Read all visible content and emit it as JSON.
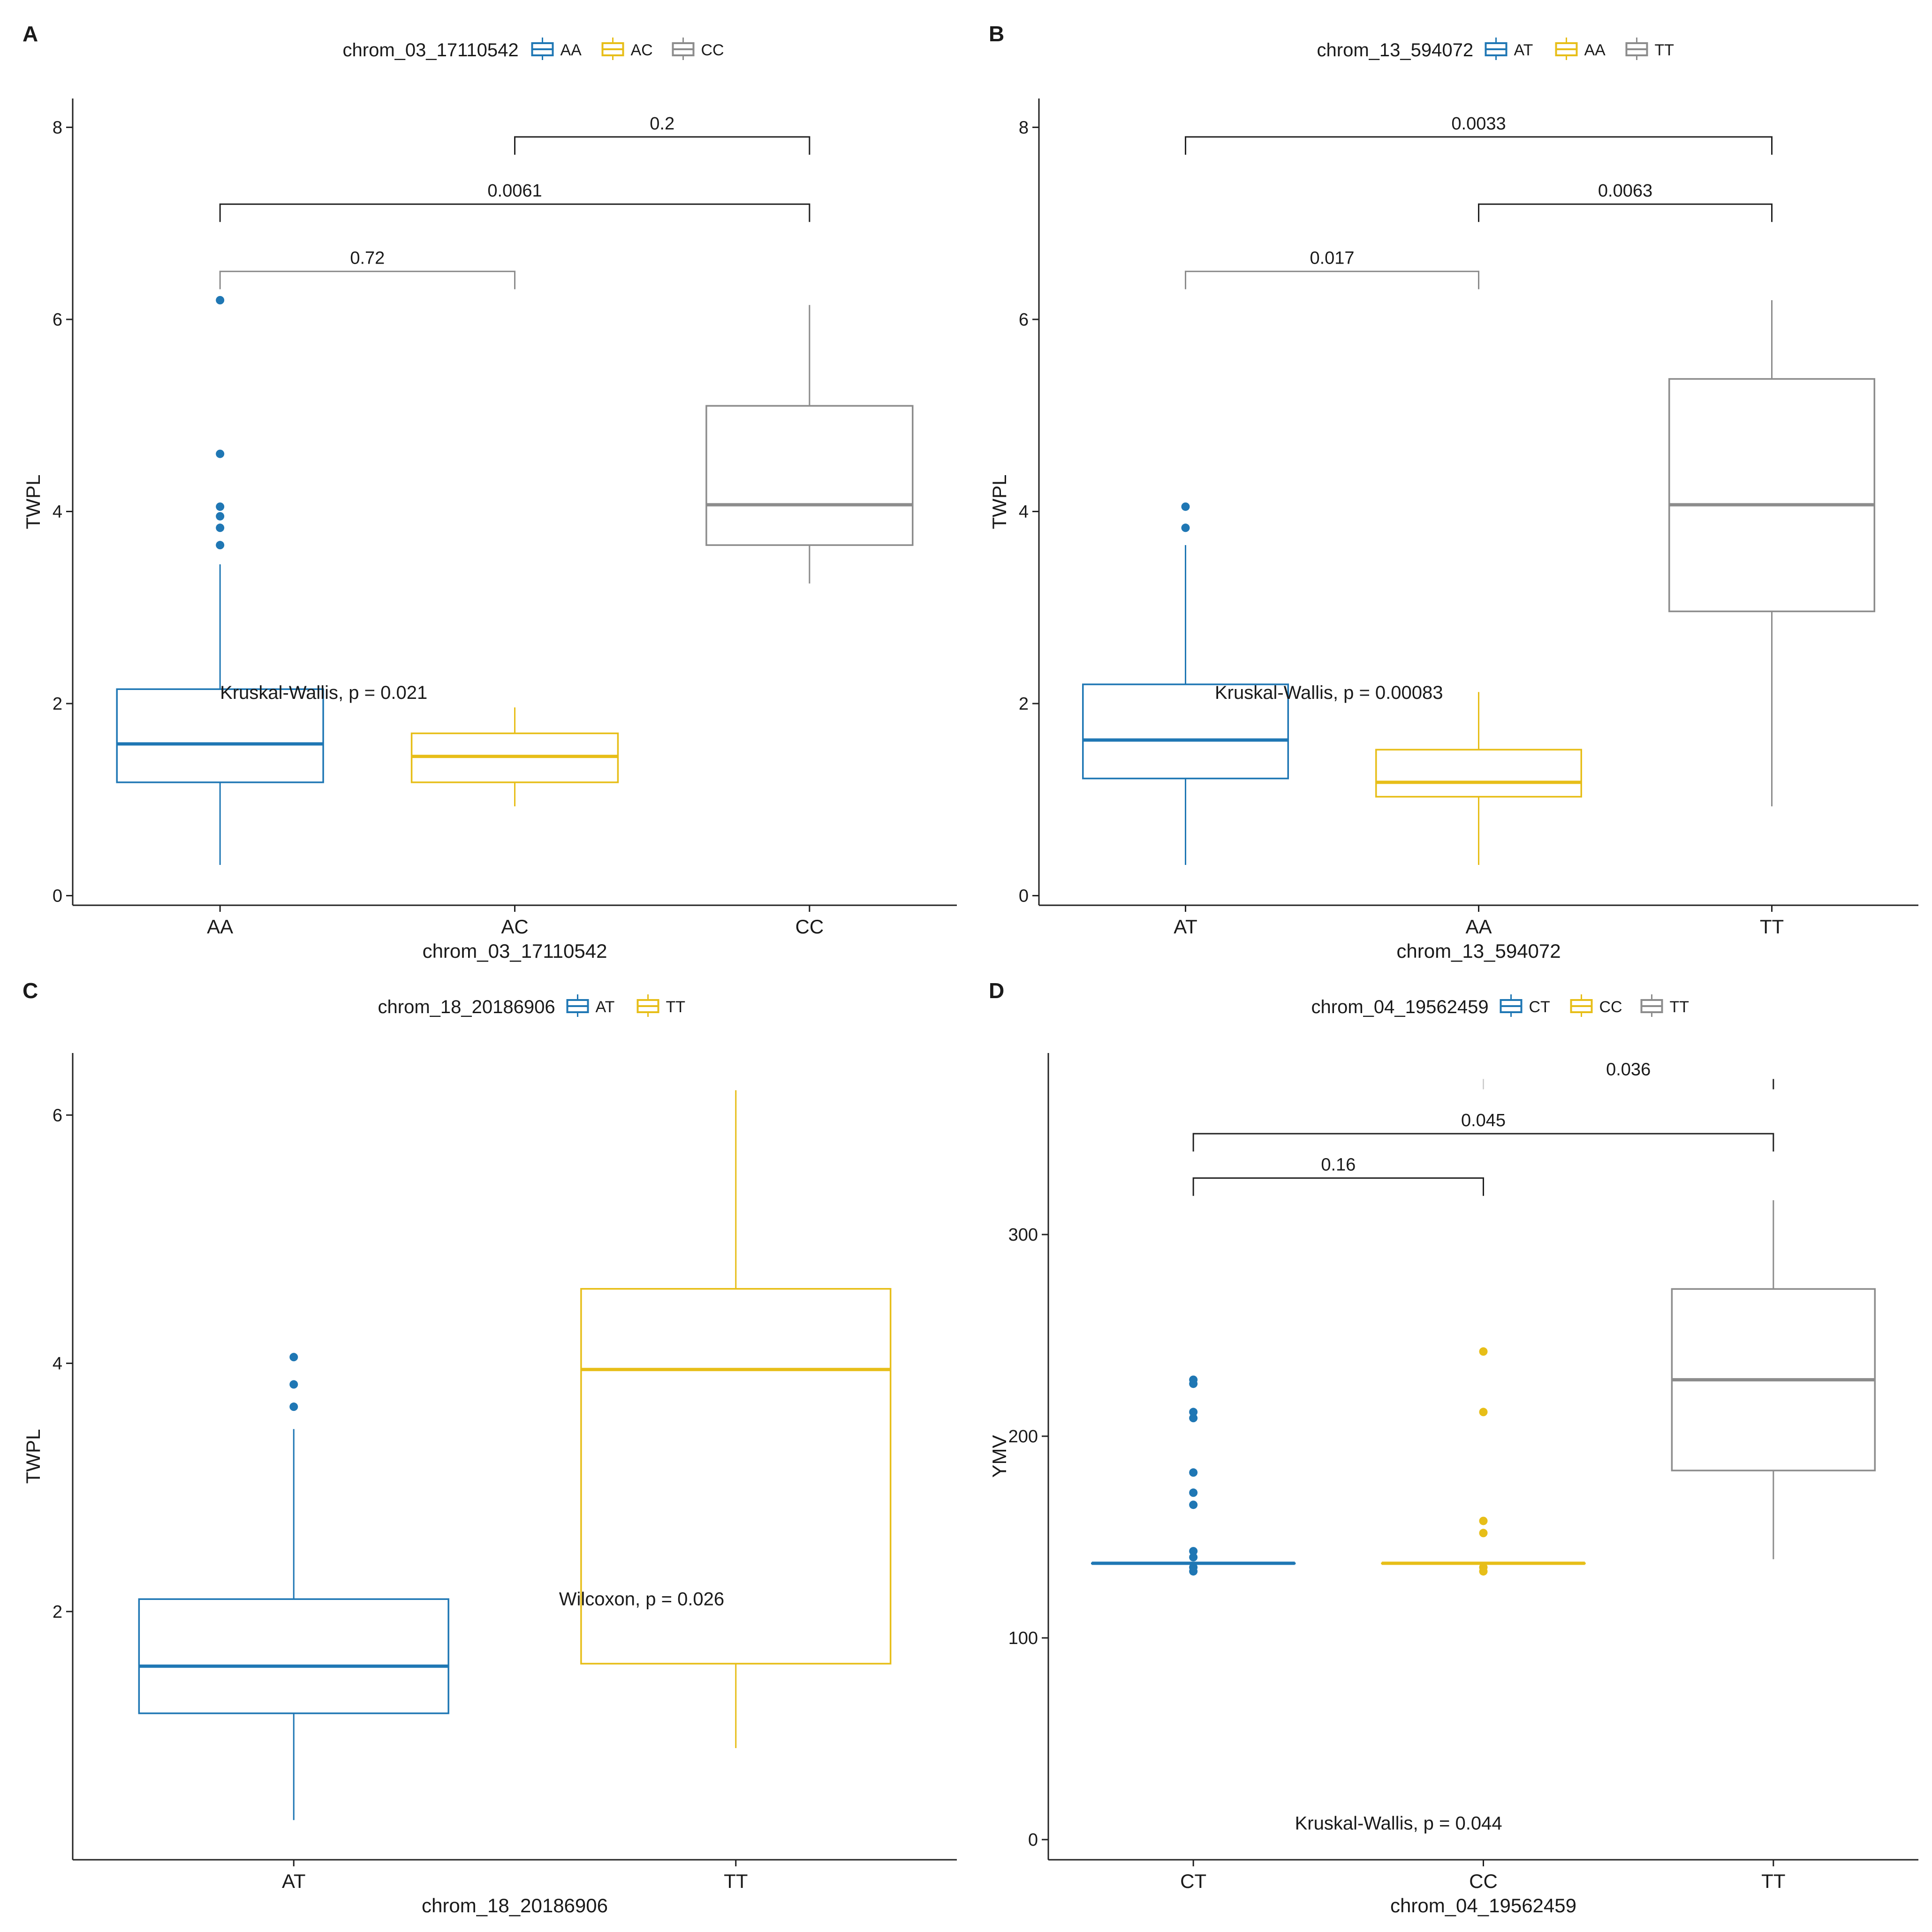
{
  "colors": {
    "group1": "#1F77B4",
    "group2": "#E7BE18",
    "group3": "#8C8C8C",
    "axis": "#222222",
    "bracket": "#222222"
  },
  "chart_data": [
    {
      "panel": "A",
      "type": "box",
      "legend_title": "chrom_03_17110542",
      "groups": [
        "AA",
        "AC",
        "CC"
      ],
      "xlabel": "chrom_03_17110542",
      "ylabel": "TWPL",
      "ylim": [
        -0.1,
        8.3
      ],
      "yticks": [
        0,
        2,
        4,
        6,
        8
      ],
      "tick_labels": [
        "0",
        "2",
        "4",
        "6",
        "8"
      ],
      "boxes": [
        {
          "group": "AA",
          "min": 0.32,
          "q1": 1.18,
          "median": 1.58,
          "q3": 2.15,
          "max": 3.45,
          "outliers": [
            3.65,
            3.83,
            3.95,
            4.05,
            4.6,
            6.2
          ]
        },
        {
          "group": "AC",
          "min": 0.93,
          "q1": 1.18,
          "median": 1.45,
          "q3": 1.69,
          "max": 1.96,
          "outliers": []
        },
        {
          "group": "CC",
          "min": 3.25,
          "q1": 3.65,
          "median": 4.07,
          "q3": 5.1,
          "max": 6.15,
          "outliers": []
        }
      ],
      "comparisons": [
        {
          "from": "AA",
          "to": "AC",
          "label": "0.72",
          "y": 6.5,
          "color": "#8C8C8C"
        },
        {
          "from": "AA",
          "to": "CC",
          "label": "0.0061",
          "y": 7.2,
          "color": "#222222"
        },
        {
          "from": "AC",
          "to": "CC",
          "label": "0.2",
          "y": 7.9,
          "color": "#222222"
        }
      ],
      "test_label": "Kruskal-Wallis, p = 0.021",
      "test_label_y": 2.05,
      "test_label_x": 0.5
    },
    {
      "panel": "B",
      "type": "box",
      "legend_title": "chrom_13_594072",
      "groups": [
        "AT",
        "AA",
        "TT"
      ],
      "xlabel": "chrom_13_594072",
      "ylabel": "TWPL",
      "ylim": [
        -0.1,
        8.3
      ],
      "yticks": [
        0,
        2,
        4,
        6,
        8
      ],
      "tick_labels": [
        "0",
        "2",
        "4",
        "6",
        "8"
      ],
      "boxes": [
        {
          "group": "AT",
          "min": 0.32,
          "q1": 1.22,
          "median": 1.62,
          "q3": 2.2,
          "max": 3.65,
          "outliers": [
            3.83,
            4.05
          ]
        },
        {
          "group": "AA",
          "min": 0.32,
          "q1": 1.03,
          "median": 1.18,
          "q3": 1.52,
          "max": 2.12,
          "outliers": []
        },
        {
          "group": "TT",
          "min": 0.93,
          "q1": 2.96,
          "median": 4.07,
          "q3": 5.38,
          "max": 6.2,
          "outliers": []
        }
      ],
      "comparisons": [
        {
          "from": "AT",
          "to": "AA",
          "label": "0.017",
          "y": 6.5,
          "color": "#8C8C8C"
        },
        {
          "from": "AA",
          "to": "TT",
          "label": "0.0063",
          "y": 7.2,
          "color": "#222222"
        },
        {
          "from": "AT",
          "to": "TT",
          "label": "0.0033",
          "y": 7.9,
          "color": "#222222"
        }
      ],
      "test_label": "Kruskal-Wallis, p = 0.00083",
      "test_label_y": 2.05,
      "test_label_x": 0.6
    },
    {
      "panel": "C",
      "type": "box",
      "legend_title": "chrom_18_20186906",
      "groups": [
        "AT",
        "TT"
      ],
      "xlabel": "chrom_18_20186906",
      "ylabel": "TWPL",
      "ylim": [
        0.0,
        6.5
      ],
      "yticks": [
        2,
        4,
        6
      ],
      "tick_labels": [
        "2",
        "4",
        "6"
      ],
      "boxes": [
        {
          "group": "AT",
          "min": 0.32,
          "q1": 1.18,
          "median": 1.56,
          "q3": 2.1,
          "max": 3.47,
          "outliers": [
            3.65,
            3.83,
            4.05
          ]
        },
        {
          "group": "TT",
          "min": 0.9,
          "q1": 1.58,
          "median": 3.95,
          "q3": 4.6,
          "max": 6.2,
          "outliers": []
        }
      ],
      "comparisons": [],
      "test_label": "Wilcoxon, p = 0.026",
      "test_label_y": 2.05,
      "test_label_x": 1.1
    },
    {
      "panel": "D",
      "type": "box",
      "legend_title": "chrom_04_19562459",
      "groups": [
        "CT",
        "CC",
        "TT"
      ],
      "xlabel": "chrom_04_19562459",
      "ylabel": "YMV",
      "ylim": [
        -10,
        390
      ],
      "yticks": [
        0,
        100,
        200,
        300
      ],
      "tick_labels": [
        "0",
        "100",
        "200",
        "300"
      ],
      "boxes": [
        {
          "group": "CT",
          "min": 137,
          "q1": 137,
          "median": 137,
          "q3": 137,
          "max": 137,
          "outliers": [
            133,
            135,
            140,
            143,
            166,
            172,
            182,
            209,
            212,
            226,
            228
          ]
        },
        {
          "group": "CC",
          "min": 137,
          "q1": 137,
          "median": 137,
          "q3": 137,
          "max": 137,
          "outliers": [
            133,
            135,
            152,
            158,
            212,
            242
          ]
        },
        {
          "group": "TT",
          "min": 139,
          "q1": 183,
          "median": 228,
          "q3": 273,
          "max": 317,
          "outliers": []
        }
      ],
      "comparisons": [
        {
          "from": "CT",
          "to": "CC",
          "label": "0.16",
          "y": 328,
          "color": "#222222"
        },
        {
          "from": "CT",
          "to": "TT",
          "label": "0.045",
          "y": 350,
          "color": "#222222"
        },
        {
          "from": "CC",
          "to": "TT",
          "label": "0.036",
          "y": 372,
          "color": "#222222",
          "partial": true
        }
      ],
      "test_label": "Kruskal-Wallis, p = 0.044",
      "test_label_y": 5,
      "test_label_x": 0.85
    }
  ]
}
